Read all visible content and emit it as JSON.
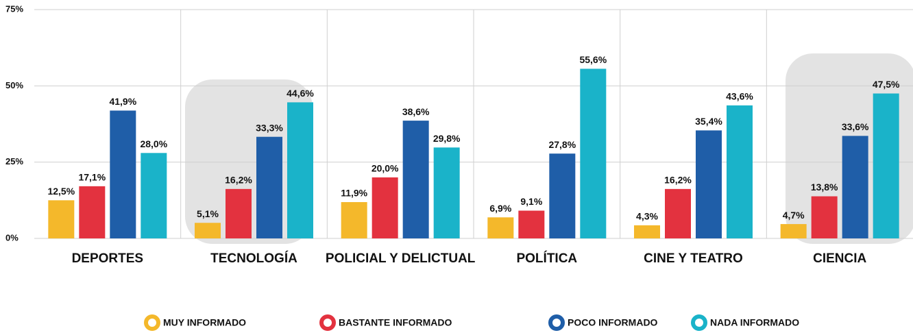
{
  "chart_data": {
    "type": "bar",
    "categories": [
      "DEPORTES",
      "TECNOLOGÍA",
      "POLICIAL Y DELICTUAL",
      "POLÍTICA",
      "CINE Y TEATRO",
      "CIENCIA"
    ],
    "series": [
      {
        "name": "MUY INFORMADO",
        "color": "#f4b82b",
        "values": [
          12.5,
          5.1,
          11.9,
          6.9,
          4.3,
          4.7
        ],
        "value_labels": [
          "12,5%",
          "5,1%",
          "11,9%",
          "6,9%",
          "4,3%",
          "4,7%"
        ]
      },
      {
        "name": "BASTANTE INFORMADO",
        "color": "#e3323f",
        "values": [
          17.1,
          16.2,
          20.0,
          9.1,
          16.2,
          13.8
        ],
        "value_labels": [
          "17,1%",
          "16,2%",
          "20,0%",
          "9,1%",
          "16,2%",
          "13,8%"
        ]
      },
      {
        "name": "POCO INFORMADO",
        "color": "#1f5ea8",
        "values": [
          41.9,
          33.3,
          38.6,
          27.8,
          35.4,
          33.6
        ],
        "value_labels": [
          "41,9%",
          "33,3%",
          "38,6%",
          "27,8%",
          "35,4%",
          "33,6%"
        ]
      },
      {
        "name": "NADA INFORMADO",
        "color": "#1ab3c9",
        "values": [
          28.0,
          44.6,
          29.8,
          55.6,
          43.6,
          47.5
        ],
        "value_labels": [
          "28,0%",
          "44,6%",
          "29,8%",
          "55,6%",
          "43,6%",
          "47,5%"
        ]
      }
    ],
    "ylim": [
      0,
      75
    ],
    "yticks": [
      {
        "value": 0,
        "label": "0%"
      },
      {
        "value": 25,
        "label": "25%"
      },
      {
        "value": 50,
        "label": "50%"
      },
      {
        "value": 75,
        "label": "75%"
      }
    ],
    "grid": true
  }
}
